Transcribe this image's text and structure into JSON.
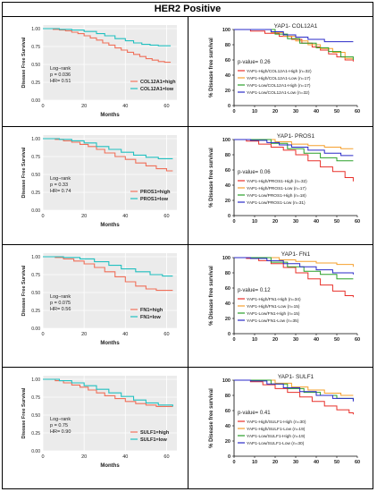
{
  "header": {
    "title": "HER2 Positive"
  },
  "chart_data": [
    {
      "id": "COL12A1-left",
      "type": "line",
      "variant": "km-simple",
      "ylabel": "Disease Free Survival",
      "xlabel": "Months",
      "xlim": [
        0,
        65
      ],
      "ylim": [
        0,
        1.05
      ],
      "xticks": [
        "0",
        "20",
        "40",
        "60"
      ],
      "yticks": [
        "0.00",
        "0.25",
        "0.50",
        "0.75",
        "1.00"
      ],
      "annotation": [
        "Log−rank",
        "p = 0.036",
        "HR= 0.51"
      ],
      "series": [
        {
          "name": "COL12A1=high",
          "color": "#f0705a",
          "x": [
            0,
            5,
            8,
            11,
            14,
            17,
            20,
            23,
            26,
            29,
            32,
            35,
            38,
            41,
            44,
            47,
            50,
            53,
            56,
            59,
            62
          ],
          "y": [
            1.0,
            0.99,
            0.98,
            0.97,
            0.95,
            0.93,
            0.9,
            0.87,
            0.84,
            0.8,
            0.77,
            0.73,
            0.7,
            0.67,
            0.64,
            0.61,
            0.58,
            0.56,
            0.54,
            0.53,
            0.53
          ]
        },
        {
          "name": "COL12A1=low",
          "color": "#22c0c0",
          "x": [
            0,
            8,
            14,
            20,
            26,
            30,
            35,
            40,
            44,
            48,
            52,
            56,
            62
          ],
          "y": [
            1.0,
            0.99,
            0.98,
            0.96,
            0.93,
            0.9,
            0.86,
            0.83,
            0.8,
            0.78,
            0.77,
            0.76,
            0.76
          ]
        }
      ]
    },
    {
      "id": "COL12A1-right",
      "type": "line",
      "variant": "km-detailed",
      "title": "YAP1- COL12A1",
      "ylabel": "% Disease free survival",
      "xlabel": "",
      "xlim": [
        0,
        60
      ],
      "ylim": [
        0,
        100
      ],
      "xticks": [
        "0",
        "10",
        "20",
        "30",
        "40",
        "50",
        "60"
      ],
      "yticks": [
        "0",
        "20",
        "40",
        "60",
        "80",
        "100"
      ],
      "pvalue": "p-value= 0.26",
      "series": [
        {
          "name": "YAP1-High/COL12A1-High (n=32)",
          "color": "#e8302a",
          "x": [
            0,
            8,
            15,
            22,
            28,
            33,
            38,
            42,
            46,
            50,
            54,
            58
          ],
          "y": [
            100,
            98,
            95,
            91,
            87,
            82,
            77,
            73,
            68,
            64,
            60,
            58
          ]
        },
        {
          "name": "YAP1-High/COL12A1-Low (n=17)",
          "color": "#f6a02e",
          "x": [
            0,
            10,
            18,
            24,
            30,
            36,
            42,
            48,
            54,
            58
          ],
          "y": [
            100,
            100,
            96,
            91,
            85,
            80,
            75,
            70,
            62,
            62
          ]
        },
        {
          "name": "YAP1-Low/COL12A1-High (n=17)",
          "color": "#2aa02a",
          "x": [
            0,
            12,
            20,
            26,
            32,
            40,
            46,
            52,
            58
          ],
          "y": [
            100,
            100,
            94,
            88,
            82,
            76,
            71,
            64,
            60
          ]
        },
        {
          "name": "YAP1-Low/COL12A1-Low (n=32)",
          "color": "#2a2ac8",
          "x": [
            0,
            10,
            18,
            24,
            30,
            36,
            44,
            52,
            58
          ],
          "y": [
            100,
            100,
            97,
            93,
            90,
            87,
            84,
            84,
            84
          ]
        }
      ]
    },
    {
      "id": "PROS1-left",
      "type": "line",
      "variant": "km-simple",
      "ylabel": "Disease Free Survival",
      "xlabel": "Months",
      "xlim": [
        0,
        65
      ],
      "ylim": [
        0,
        1.05
      ],
      "xticks": [
        "0",
        "20",
        "40",
        "60"
      ],
      "yticks": [
        "0.00",
        "0.25",
        "0.50",
        "0.75",
        "1.00"
      ],
      "annotation": [
        "Log−rank",
        "p = 0.33",
        "HR= 0.74"
      ],
      "series": [
        {
          "name": "PROS1=high",
          "color": "#f0705a",
          "x": [
            0,
            6,
            10,
            14,
            18,
            22,
            26,
            30,
            35,
            40,
            45,
            50,
            55,
            60,
            63
          ],
          "y": [
            1.0,
            0.99,
            0.97,
            0.95,
            0.92,
            0.89,
            0.85,
            0.8,
            0.75,
            0.71,
            0.66,
            0.62,
            0.58,
            0.55,
            0.55
          ]
        },
        {
          "name": "PROS1=low",
          "color": "#22c0c0",
          "x": [
            0,
            8,
            14,
            20,
            26,
            32,
            38,
            44,
            50,
            56,
            63
          ],
          "y": [
            1.0,
            0.99,
            0.97,
            0.94,
            0.89,
            0.85,
            0.81,
            0.77,
            0.74,
            0.72,
            0.72
          ]
        }
      ]
    },
    {
      "id": "PROS1-right",
      "type": "line",
      "variant": "km-detailed",
      "title": "YAP1- PROS1",
      "ylabel": "% Disease free survival",
      "xlabel": "",
      "xlim": [
        0,
        60
      ],
      "ylim": [
        0,
        100
      ],
      "xticks": [
        "0",
        "10",
        "20",
        "30",
        "40",
        "50",
        "60"
      ],
      "yticks": [
        "0",
        "20",
        "40",
        "60",
        "80",
        "100"
      ],
      "pvalue": "p-value= 0.06",
      "series": [
        {
          "name": "YAP1-High/PROS1-High (n=32)",
          "color": "#e8302a",
          "x": [
            0,
            6,
            12,
            18,
            24,
            30,
            36,
            42,
            48,
            54,
            58
          ],
          "y": [
            100,
            98,
            94,
            90,
            86,
            80,
            72,
            64,
            58,
            50,
            45
          ]
        },
        {
          "name": "YAP1-High/PROS1-Low (n=17)",
          "color": "#f6a02e",
          "x": [
            0,
            12,
            20,
            28,
            36,
            44,
            52,
            58
          ],
          "y": [
            100,
            100,
            97,
            94,
            92,
            90,
            88,
            88
          ]
        },
        {
          "name": "YAP1-Low/PROS1-High (n=18)",
          "color": "#2aa02a",
          "x": [
            0,
            10,
            18,
            26,
            34,
            42,
            50,
            58
          ],
          "y": [
            100,
            100,
            95,
            88,
            82,
            76,
            72,
            72
          ]
        },
        {
          "name": "YAP1-Low/PROS1-Low (n=31)",
          "color": "#2a2ac8",
          "x": [
            0,
            8,
            16,
            22,
            28,
            36,
            44,
            52,
            58
          ],
          "y": [
            100,
            99,
            96,
            93,
            90,
            86,
            82,
            79,
            79
          ]
        }
      ]
    },
    {
      "id": "FN1-left",
      "type": "line",
      "variant": "km-simple",
      "ylabel": "Disease Free Survival",
      "xlabel": "Months",
      "xlim": [
        0,
        65
      ],
      "ylim": [
        0,
        1.05
      ],
      "xticks": [
        "0",
        "20",
        "40",
        "60"
      ],
      "yticks": [
        "0.00",
        "0.25",
        "0.50",
        "0.75",
        "1.00"
      ],
      "annotation": [
        "Log−rank",
        "p = 0.075",
        "HR= 0.56"
      ],
      "series": [
        {
          "name": "FN1=high",
          "color": "#f0705a",
          "x": [
            0,
            6,
            10,
            15,
            20,
            25,
            30,
            35,
            40,
            45,
            50,
            55,
            63
          ],
          "y": [
            1.0,
            0.99,
            0.97,
            0.94,
            0.9,
            0.85,
            0.79,
            0.72,
            0.65,
            0.59,
            0.55,
            0.53,
            0.53
          ]
        },
        {
          "name": "FN1=low",
          "color": "#22c0c0",
          "x": [
            0,
            10,
            18,
            25,
            32,
            38,
            45,
            52,
            58,
            63
          ],
          "y": [
            1.0,
            0.99,
            0.97,
            0.93,
            0.88,
            0.83,
            0.79,
            0.75,
            0.73,
            0.73
          ]
        }
      ]
    },
    {
      "id": "FN1-right",
      "type": "line",
      "variant": "km-detailed",
      "title": "YAP1- FN1",
      "ylabel": "% Disease free survival",
      "xlabel": "",
      "xlim": [
        0,
        60
      ],
      "ylim": [
        0,
        100
      ],
      "xticks": [
        "0",
        "10",
        "20",
        "30",
        "40",
        "50",
        "60"
      ],
      "yticks": [
        "0",
        "20",
        "40",
        "60",
        "80",
        "100"
      ],
      "pvalue": "p-value= 0.12",
      "series": [
        {
          "name": "YAP1-High/FN1-High (n=34)",
          "color": "#e8302a",
          "x": [
            0,
            6,
            12,
            18,
            24,
            30,
            36,
            42,
            48,
            54,
            58
          ],
          "y": [
            100,
            99,
            96,
            92,
            87,
            80,
            72,
            64,
            56,
            50,
            48
          ]
        },
        {
          "name": "YAP1-High/FN1-Low (n=15)",
          "color": "#f6a02e",
          "x": [
            0,
            14,
            22,
            30,
            40,
            50,
            58
          ],
          "y": [
            100,
            100,
            97,
            95,
            93,
            91,
            88
          ]
        },
        {
          "name": "YAP1-Low/FN1-High (n=15)",
          "color": "#2aa02a",
          "x": [
            0,
            10,
            18,
            26,
            34,
            42,
            50,
            58
          ],
          "y": [
            100,
            100,
            94,
            88,
            82,
            78,
            72,
            72
          ]
        },
        {
          "name": "YAP1-Low/FN1-Low (n=35)",
          "color": "#2a2ac8",
          "x": [
            0,
            8,
            16,
            24,
            32,
            40,
            48,
            58
          ],
          "y": [
            100,
            99,
            96,
            92,
            88,
            84,
            80,
            78
          ]
        }
      ]
    },
    {
      "id": "SULF1-left",
      "type": "line",
      "variant": "km-simple",
      "ylabel": "Disease Free Survival",
      "xlabel": "Months",
      "xlim": [
        0,
        65
      ],
      "ylim": [
        0,
        1.05
      ],
      "xticks": [
        "0",
        "20",
        "40",
        "60"
      ],
      "yticks": [
        "0.00",
        "0.25",
        "0.50",
        "0.75",
        "1.00"
      ],
      "annotation": [
        "Log−rank",
        "p = 0.75",
        "HR= 0.90"
      ],
      "series": [
        {
          "name": "SULF1=high",
          "color": "#f0705a",
          "x": [
            0,
            6,
            10,
            14,
            18,
            22,
            26,
            30,
            35,
            40,
            45,
            50,
            55,
            63
          ],
          "y": [
            1.0,
            0.98,
            0.95,
            0.92,
            0.89,
            0.85,
            0.81,
            0.77,
            0.73,
            0.69,
            0.66,
            0.64,
            0.62,
            0.62
          ]
        },
        {
          "name": "SULF1=low",
          "color": "#22c0c0",
          "x": [
            0,
            8,
            14,
            20,
            26,
            32,
            38,
            44,
            50,
            56,
            63
          ],
          "y": [
            1.0,
            0.98,
            0.95,
            0.91,
            0.86,
            0.81,
            0.76,
            0.71,
            0.67,
            0.64,
            0.62
          ]
        }
      ]
    },
    {
      "id": "SULF1-right",
      "type": "line",
      "variant": "km-detailed",
      "title": "YAP1- SULF1",
      "ylabel": "% Disease free survival",
      "xlabel": "",
      "xlim": [
        0,
        60
      ],
      "ylim": [
        0,
        100
      ],
      "xticks": [
        "0",
        "10",
        "20",
        "30",
        "40",
        "50",
        "60"
      ],
      "yticks": [
        "0",
        "20",
        "40",
        "60",
        "80",
        "100"
      ],
      "pvalue": "p-value= 0.41",
      "series": [
        {
          "name": "YAP1-High/SULF1-High (n=30)",
          "color": "#e8302a",
          "x": [
            0,
            8,
            14,
            20,
            26,
            32,
            38,
            44,
            50,
            56,
            58
          ],
          "y": [
            100,
            98,
            94,
            89,
            84,
            78,
            72,
            66,
            61,
            57,
            55
          ]
        },
        {
          "name": "YAP1-High/SULF1-Low (n=19)",
          "color": "#f6a02e",
          "x": [
            0,
            12,
            20,
            28,
            36,
            44,
            52,
            58
          ],
          "y": [
            100,
            100,
            96,
            91,
            87,
            83,
            80,
            80
          ]
        },
        {
          "name": "YAP1-Low/SULF1-High (n=19)",
          "color": "#2aa02a",
          "x": [
            0,
            10,
            18,
            26,
            34,
            42,
            50,
            58
          ],
          "y": [
            100,
            100,
            95,
            89,
            84,
            80,
            76,
            74
          ]
        },
        {
          "name": "YAP1-Low/SULF1-Low (n=30)",
          "color": "#2a2ac8",
          "x": [
            0,
            8,
            16,
            24,
            32,
            40,
            48,
            58
          ],
          "y": [
            100,
            99,
            95,
            90,
            85,
            80,
            76,
            72
          ]
        }
      ]
    }
  ]
}
